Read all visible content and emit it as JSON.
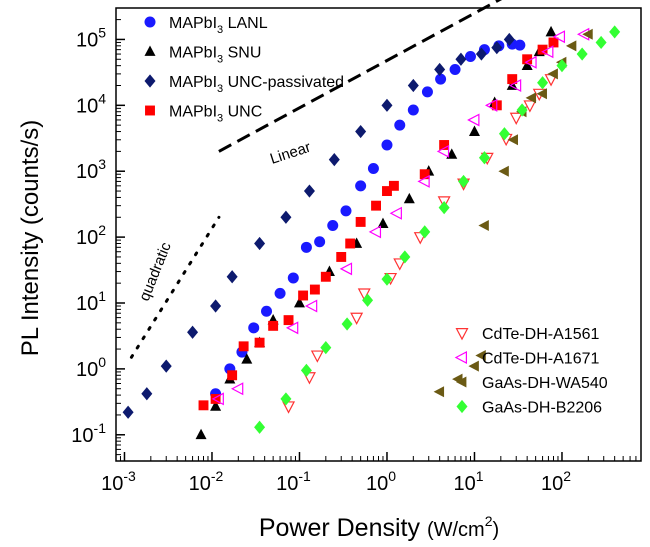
{
  "chart_data": {
    "type": "scatter",
    "xlabel": "Power Density (W/cm²)",
    "xlabel_main": "Power Density",
    "xlabel_unit": "(W/cm",
    "xlabel_unit_sup": "2",
    "xlabel_unit_end": ")",
    "ylabel": "PL Intensity (counts/s)",
    "xscale": "log",
    "yscale": "log",
    "xlim": [
      0.0008,
      800
    ],
    "ylim": [
      0.04,
      300000
    ],
    "xticks": [
      {
        "value": 0.001,
        "base": "10",
        "exp": "-3"
      },
      {
        "value": 0.01,
        "base": "10",
        "exp": "-2"
      },
      {
        "value": 0.1,
        "base": "10",
        "exp": "-1"
      },
      {
        "value": 1,
        "base": "10",
        "exp": "0"
      },
      {
        "value": 10,
        "base": "10",
        "exp": "1"
      },
      {
        "value": 100,
        "base": "10",
        "exp": "2"
      }
    ],
    "yticks": [
      {
        "value": 0.1,
        "base": "10",
        "exp": "-1"
      },
      {
        "value": 1,
        "base": "10",
        "exp": "0"
      },
      {
        "value": 10,
        "base": "10",
        "exp": "1"
      },
      {
        "value": 100,
        "base": "10",
        "exp": "2"
      },
      {
        "value": 1000,
        "base": "10",
        "exp": "3"
      },
      {
        "value": 10000,
        "base": "10",
        "exp": "4"
      },
      {
        "value": 100000,
        "base": "10",
        "exp": "5"
      }
    ],
    "legend_top_left": [
      {
        "label_main": "MAPbI",
        "label_sub": "3",
        "label_rest": " LANL",
        "marker": "circle",
        "color": "#1a1aff"
      },
      {
        "label_main": "MAPbI",
        "label_sub": "3",
        "label_rest": " SNU",
        "marker": "triangle-up",
        "color": "#000000"
      },
      {
        "label_main": "MAPbI",
        "label_sub": "3",
        "label_rest": " UNC-passivated",
        "marker": "diamond",
        "color": "#0d1a6e"
      },
      {
        "label_main": "MAPbI",
        "label_sub": "3",
        "label_rest": " UNC",
        "marker": "square",
        "color": "#ff0000"
      }
    ],
    "legend_bottom_right": [
      {
        "label": "CdTe-DH-A1561",
        "marker": "triangle-down-open",
        "color": "#ff3333"
      },
      {
        "label": "CdTe-DH-A1671",
        "marker": "triangle-left-open",
        "color": "#ff00ff"
      },
      {
        "label": "GaAs-DH-WA540",
        "marker": "triangle-left",
        "color": "#6b5a14"
      },
      {
        "label": "GaAs-DH-B2206",
        "marker": "diamond",
        "color": "#33ff33"
      }
    ],
    "annotations": {
      "linear": "Linear",
      "quadratic": "quadratic"
    },
    "reference_lines": [
      {
        "name": "Linear",
        "style": "dashed",
        "x": [
          0.012,
          30
        ],
        "y": [
          2000,
          550000
        ]
      },
      {
        "name": "quadratic",
        "style": "dotted",
        "x": [
          0.0012,
          0.012
        ],
        "y": [
          1.5,
          200
        ]
      }
    ],
    "series": [
      {
        "name": "MAPbI3 LANL",
        "marker": "circle",
        "color": "#1a1aff",
        "points": [
          [
            0.011,
            0.42
          ],
          [
            0.016,
            1.0
          ],
          [
            0.022,
            1.8
          ],
          [
            0.03,
            4.2
          ],
          [
            0.042,
            7.5
          ],
          [
            0.06,
            14
          ],
          [
            0.085,
            24
          ],
          [
            0.12,
            70
          ],
          [
            0.17,
            85
          ],
          [
            0.24,
            150
          ],
          [
            0.34,
            250
          ],
          [
            0.5,
            600
          ],
          [
            0.7,
            1100
          ],
          [
            1.0,
            2500
          ],
          [
            1.4,
            5000
          ],
          [
            2.0,
            8500
          ],
          [
            2.9,
            16000
          ],
          [
            4.1,
            25000
          ],
          [
            6.0,
            35000
          ],
          [
            9.0,
            55000
          ],
          [
            13,
            70000
          ],
          [
            19,
            80000
          ],
          [
            27,
            85000
          ],
          [
            33,
            82000
          ]
        ]
      },
      {
        "name": "MAPbI3 SNU",
        "marker": "triangle-up",
        "color": "#000000",
        "points": [
          [
            0.0075,
            0.1
          ],
          [
            0.011,
            0.27
          ],
          [
            0.016,
            0.7
          ],
          [
            0.025,
            1.4
          ],
          [
            0.035,
            2.5
          ],
          [
            0.05,
            5.5
          ],
          [
            0.1,
            10
          ],
          [
            0.22,
            30
          ],
          [
            0.45,
            80
          ],
          [
            0.9,
            160
          ],
          [
            1.8,
            380
          ],
          [
            3.0,
            1000
          ],
          [
            5.5,
            1800
          ],
          [
            10,
            4000
          ],
          [
            17,
            11000
          ],
          [
            27,
            20000
          ],
          [
            40,
            40000
          ],
          [
            55,
            65000
          ],
          [
            75,
            130000
          ]
        ]
      },
      {
        "name": "MAPbI3 UNC-passivated",
        "marker": "diamond",
        "color": "#0d1a6e",
        "points": [
          [
            0.0011,
            0.22
          ],
          [
            0.0018,
            0.42
          ],
          [
            0.003,
            1.1
          ],
          [
            0.006,
            3.6
          ],
          [
            0.011,
            9
          ],
          [
            0.017,
            25
          ],
          [
            0.035,
            80
          ],
          [
            0.07,
            200
          ],
          [
            0.13,
            500
          ],
          [
            0.25,
            1500
          ],
          [
            0.5,
            4000
          ],
          [
            1.0,
            10000
          ],
          [
            2.0,
            20000
          ],
          [
            4.0,
            35000
          ],
          [
            7.0,
            50000
          ],
          [
            12,
            60000
          ],
          [
            18,
            75000
          ],
          [
            25,
            100000
          ]
        ]
      },
      {
        "name": "MAPbI3 UNC",
        "marker": "square",
        "color": "#ff0000",
        "points": [
          [
            0.008,
            0.28
          ],
          [
            0.011,
            0.35
          ],
          [
            0.017,
            0.8
          ],
          [
            0.023,
            2.2
          ],
          [
            0.035,
            2.5
          ],
          [
            0.05,
            4.5
          ],
          [
            0.075,
            5.5
          ],
          [
            0.11,
            13
          ],
          [
            0.15,
            16
          ],
          [
            0.2,
            25
          ],
          [
            0.3,
            50
          ],
          [
            0.38,
            80
          ],
          [
            0.5,
            170
          ],
          [
            0.75,
            300
          ],
          [
            1.0,
            500
          ],
          [
            1.2,
            600
          ],
          [
            2.7,
            900
          ],
          [
            4.5,
            2500
          ],
          [
            18,
            10000
          ],
          [
            27,
            25000
          ],
          [
            40,
            50000
          ],
          [
            60,
            70000
          ],
          [
            80,
            90000
          ]
        ]
      },
      {
        "name": "CdTe-DH-A1561",
        "marker": "triangle-down-open",
        "color": "#ff3333",
        "points": [
          [
            0.075,
            0.27
          ],
          [
            0.13,
            0.75
          ],
          [
            0.16,
            1.6
          ],
          [
            0.45,
            6
          ],
          [
            0.55,
            14
          ],
          [
            1.1,
            24
          ],
          [
            1.4,
            40
          ],
          [
            2.4,
            100
          ],
          [
            4.5,
            350
          ],
          [
            7.5,
            650
          ],
          [
            14,
            1600
          ],
          [
            23,
            3100
          ],
          [
            30,
            6500
          ],
          [
            43,
            10000
          ],
          [
            55,
            15000
          ],
          [
            75,
            25000
          ]
        ]
      },
      {
        "name": "CdTe-DH-A1671",
        "marker": "triangle-left-open",
        "color": "#ff00ff",
        "points": [
          [
            0.012,
            0.35
          ],
          [
            0.02,
            0.5
          ],
          [
            0.085,
            4.2
          ],
          [
            0.14,
            9
          ],
          [
            0.35,
            33
          ],
          [
            0.75,
            120
          ],
          [
            1.3,
            230
          ],
          [
            2.7,
            700
          ],
          [
            4.5,
            2000
          ],
          [
            10,
            6000
          ],
          [
            16,
            10000
          ],
          [
            30,
            20000
          ],
          [
            45,
            45000
          ],
          [
            70,
            65000
          ],
          [
            95,
            110000
          ],
          [
            180,
            120000
          ]
        ]
      },
      {
        "name": "GaAs-DH-WA540",
        "marker": "triangle-left",
        "color": "#6b5a14",
        "points": [
          [
            4.0,
            0.45
          ],
          [
            6.5,
            0.7
          ],
          [
            10,
            1.1
          ],
          [
            12,
            1.6
          ],
          [
            13,
            150
          ],
          [
            22,
            1000
          ],
          [
            28,
            3000
          ],
          [
            35,
            8000
          ],
          [
            45,
            13000
          ],
          [
            60,
            15000
          ],
          [
            80,
            30000
          ],
          [
            100,
            45000
          ],
          [
            130,
            80000
          ],
          [
            200,
            120000
          ]
        ]
      },
      {
        "name": "GaAs-DH-B2206",
        "marker": "diamond",
        "color": "#33ff33",
        "points": [
          [
            0.035,
            0.13
          ],
          [
            0.07,
            0.35
          ],
          [
            0.12,
            0.95
          ],
          [
            0.2,
            2.1
          ],
          [
            0.35,
            4.8
          ],
          [
            0.6,
            11
          ],
          [
            1.0,
            23
          ],
          [
            1.6,
            50
          ],
          [
            2.7,
            120
          ],
          [
            4.5,
            280
          ],
          [
            7.5,
            700
          ],
          [
            13,
            1600
          ],
          [
            22,
            3700
          ],
          [
            35,
            8500
          ],
          [
            60,
            22000
          ],
          [
            100,
            40000
          ],
          [
            170,
            60000
          ],
          [
            280,
            90000
          ],
          [
            400,
            130000
          ]
        ]
      }
    ]
  }
}
